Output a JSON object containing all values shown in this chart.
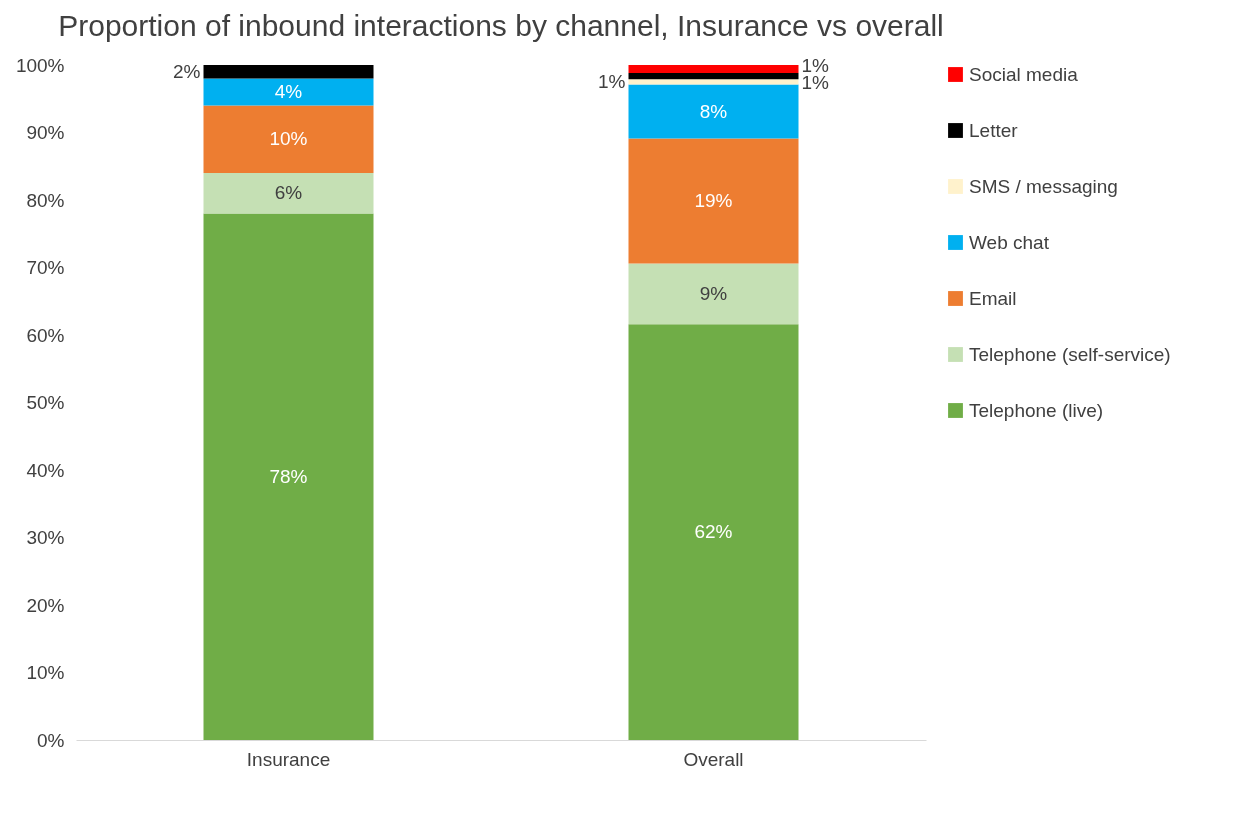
{
  "chart_data": {
    "type": "bar",
    "stacked": true,
    "title": "Proportion of inbound interactions by channel, Insurance vs overall",
    "categories": [
      "Insurance",
      "Overall"
    ],
    "series": [
      {
        "name": "Telephone (live)",
        "color": "#70ad47",
        "values": [
          78,
          61.6
        ],
        "value_labels": [
          "78%",
          "62%"
        ]
      },
      {
        "name": "Telephone (self-service)",
        "color": "#c5e0b4",
        "values": [
          6,
          9.0
        ],
        "value_labels": [
          "6%",
          "9%"
        ]
      },
      {
        "name": "Email",
        "color": "#ed7d31",
        "values": [
          10,
          18.5
        ],
        "value_labels": [
          "10%",
          "19%"
        ]
      },
      {
        "name": "Web chat",
        "color": "#00b0f0",
        "values": [
          4,
          8
        ],
        "value_labels": [
          "4%",
          "8%"
        ]
      },
      {
        "name": "SMS / messaging",
        "color": "#fff2cc",
        "values": [
          0,
          0.8
        ],
        "value_labels": [
          null,
          "1%"
        ]
      },
      {
        "name": "Letter",
        "color": "#000000",
        "values": [
          2,
          0.9
        ],
        "value_labels": [
          "2%",
          "1%"
        ]
      },
      {
        "name": "Social media",
        "color": "#ff0000",
        "values": [
          0,
          1.2
        ],
        "value_labels": [
          null,
          "1%"
        ]
      }
    ],
    "ylim": [
      0,
      100
    ],
    "yticks": [
      {
        "value": 0,
        "label": "0%"
      },
      {
        "value": 10,
        "label": "10%"
      },
      {
        "value": 20,
        "label": "20%"
      },
      {
        "value": 30,
        "label": "30%"
      },
      {
        "value": 40,
        "label": "40%"
      },
      {
        "value": 50,
        "label": "50%"
      },
      {
        "value": 60,
        "label": "60%"
      },
      {
        "value": 70,
        "label": "70%"
      },
      {
        "value": 80,
        "label": "80%"
      },
      {
        "value": 90,
        "label": "90%"
      },
      {
        "value": 100,
        "label": "100%"
      }
    ],
    "grid": false,
    "legend": "right"
  }
}
